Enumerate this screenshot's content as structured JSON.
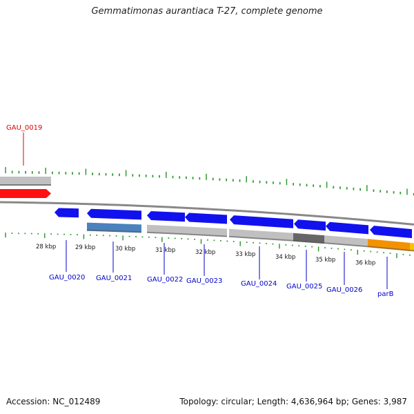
{
  "title": "Gemmatimonas aurantiaca T-27, complete genome",
  "footer": {
    "accession": "Accession: NC_012489",
    "topology": "Topology: circular; Length: 4,636,964 bp; Genes: 3,987"
  },
  "colors": {
    "ruler_tick": "#339933",
    "backbone": "#888888",
    "highlight_gene": "#ff1111",
    "cds_forward": "#1111ee",
    "cds_light_gray": "#c0c0c0",
    "cds_dark_gray": "#666666",
    "cds_steel_blue": "#4a82be",
    "cds_orange": "#f39200",
    "cds_yellow": "#f5c400",
    "label_highlight": "#dd0000",
    "label_gene": "#0000cc"
  },
  "scale_labels": [
    "28 kbp",
    "29 kbp",
    "30 kbp",
    "31 kbp",
    "32 kbp",
    "33 kbp",
    "34 kbp",
    "35 kbp",
    "36 kbp"
  ],
  "genes": [
    {
      "name": "GAU_0019",
      "highlight": true
    },
    {
      "name": "GAU_0020"
    },
    {
      "name": "GAU_0021"
    },
    {
      "name": "GAU_0022"
    },
    {
      "name": "GAU_0023"
    },
    {
      "name": "GAU_0024"
    },
    {
      "name": "GAU_0025"
    },
    {
      "name": "GAU_0026"
    },
    {
      "name": "parB"
    }
  ]
}
